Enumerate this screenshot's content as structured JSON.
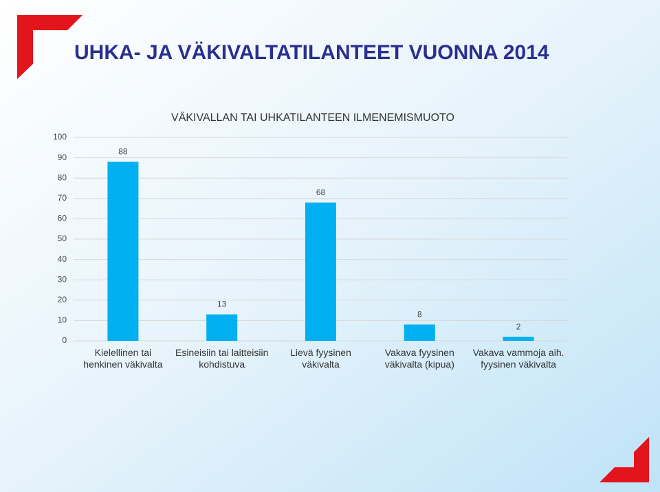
{
  "slide_title": "UHKA- JA VÄKIVALTATILANTEET VUONNA 2014",
  "chart_data": {
    "type": "bar",
    "title": "VÄKIVALLAN TAI UHKATILANTEEN ILMENEMISMUOTO",
    "categories": [
      [
        "Kielellinen tai",
        "henkinen väkivalta"
      ],
      [
        "Esineisiin tai laitteisiin",
        "kohdistuva"
      ],
      [
        "Lievä fyysinen",
        "väkivalta"
      ],
      [
        "Vakava fyysinen",
        "väkivalta (kipua)"
      ],
      [
        "Vakava vammoja aih.",
        "fyysinen väkivalta"
      ]
    ],
    "values": [
      88,
      13,
      68,
      8,
      2
    ],
    "color": "#00b0f0",
    "ylim": [
      0,
      100
    ],
    "yticks": [
      0,
      10,
      20,
      30,
      40,
      50,
      60,
      70,
      80,
      90,
      100
    ],
    "grid": true
  }
}
